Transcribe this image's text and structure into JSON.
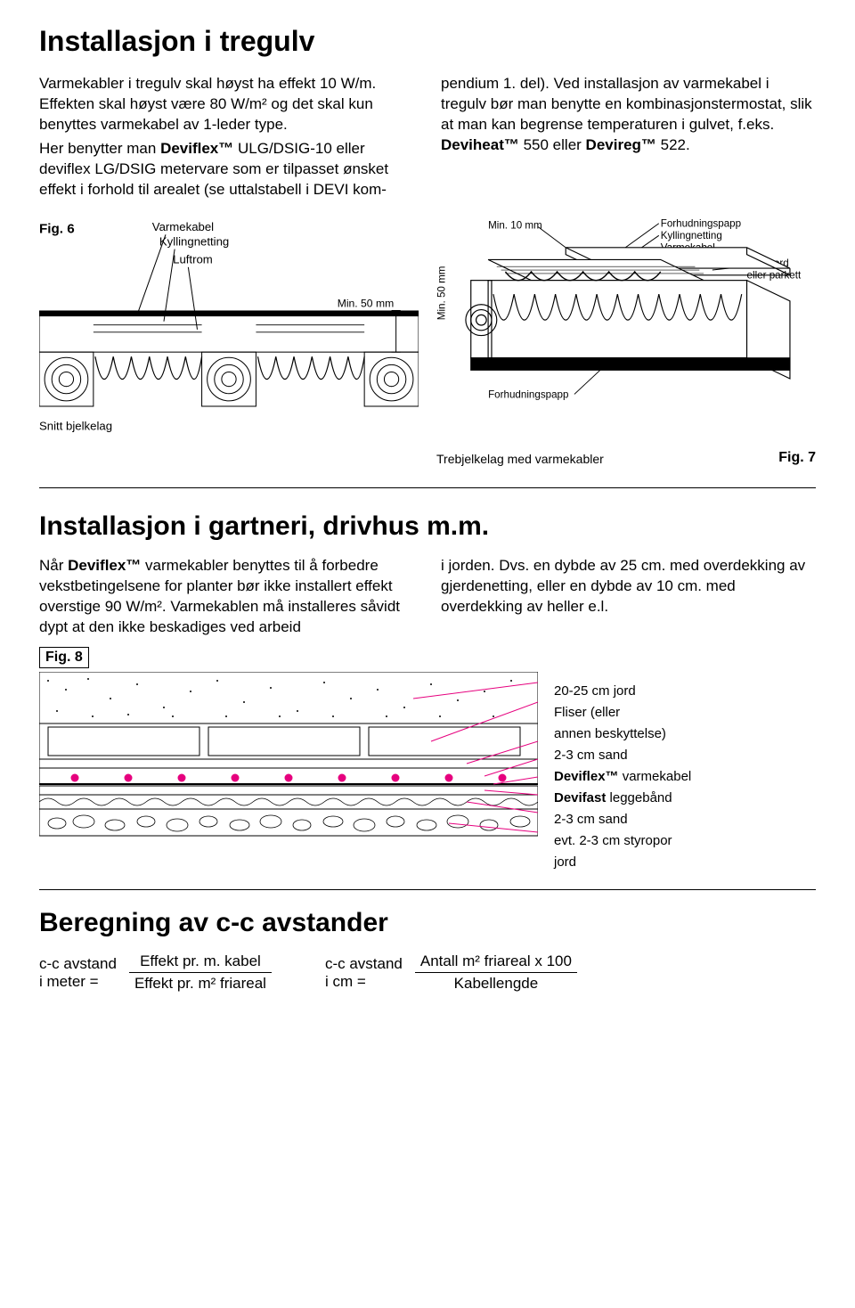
{
  "section1": {
    "title": "Installasjon i tregulv",
    "para_left": "Varmekabler i tregulv skal høyst ha effekt 10 W/m. Effekten skal høyst være 80 W/m² og det skal kun benyttes varmekabel av 1-leder type.",
    "para_left2a": "Her benytter man ",
    "brand1": "Deviflex™",
    "para_left2b": " ULG/DSIG-10 eller deviflex LG/DSIG metervare som er tilpasset ønsket effekt i forhold til arealet (se uttalstabell i DEVI kom-",
    "para_right1": "pendium 1. del). Ved installasjon av varmekabel i tregulv bør man benytte en kombinasjonstermostat, slik at man kan begrense temperaturen i gulvet, f.eks. ",
    "brand2": "Deviheat™",
    "mid": " 550 eller ",
    "brand3": "Devireg™",
    "tail": " 522."
  },
  "fig6": {
    "label": "Fig. 6",
    "l1": "Varmekabel",
    "l2": "Kyllingnetting",
    "l3": "Luftrom",
    "l4": "Min. 50 mm",
    "caption": "Snitt bjelkelag"
  },
  "fig7": {
    "top1": "Min. 10 mm",
    "r1": "Forhudningspapp",
    "r2": "Kyllingnetting",
    "r3": "Varmekabel",
    "r4": "Golvbord",
    "r5": "eller parkett",
    "left": "Min. 50 mm",
    "bottom": "Forhudningspapp",
    "caption": "Trebjelkelag med varmekabler",
    "label": "Fig. 7"
  },
  "section2": {
    "title": "Installasjon i gartneri, drivhus m.m.",
    "left_a": "Når ",
    "brand": "Deviflex™",
    "left_b": " varmekabler benyttes til å forbedre vekstbetingelsene for planter bør ikke installert effekt overstige 90 W/m². Varmekablen må installeres såvidt dypt at den ikke beskadiges ved arbeid",
    "right": "i jorden. Dvs. en dybde av 25 cm. med overdekking av gjerdenetting, eller en dybde av 10 cm. med overdekking av heller e.l."
  },
  "fig8": {
    "label": "Fig. 8",
    "layers": [
      "20-25 cm jord",
      "Fliser (eller",
      "annen beskyttelse)",
      "2-3 cm sand",
      "Deviflex™ varmekabel",
      "Devifast leggebånd",
      "2-3 cm sand",
      "evt. 2-3 cm styropor",
      "jord"
    ],
    "magenta": "#e6007e",
    "gray_light": "#bfbfbf",
    "gray_dark": "#8a8a8a"
  },
  "section3": {
    "title": "Beregning av c-c avstander",
    "f1_lhs1": "c-c avstand",
    "f1_lhs2": "i meter =",
    "f1_num": "Effekt pr. m. kabel",
    "f1_den": "Effekt pr. m² friareal",
    "f2_lhs1": "c-c avstand",
    "f2_lhs2": "i cm =",
    "f2_num": "Antall m² friareal x 100",
    "f2_den": "Kabellengde"
  }
}
